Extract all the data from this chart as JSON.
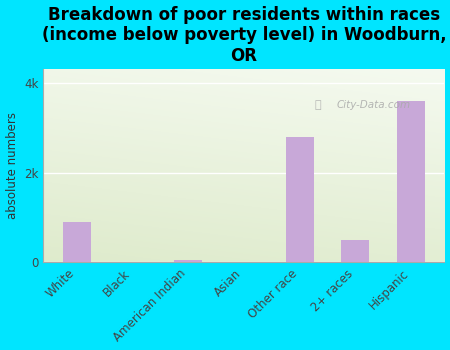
{
  "title": "Breakdown of poor residents within races\n(income below poverty level) in Woodburn,\nOR",
  "categories": [
    "White",
    "Black",
    "American Indian",
    "Asian",
    "Other race",
    "2+ races",
    "Hispanic"
  ],
  "values": [
    900,
    5,
    50,
    0,
    2800,
    500,
    3600
  ],
  "bar_color": "#c8a8d8",
  "ylabel": "absolute numbers",
  "yticks": [
    0,
    2000,
    4000
  ],
  "ytick_labels": [
    "0",
    "2k",
    "4k"
  ],
  "ylim": [
    0,
    4300
  ],
  "xlim_min": -0.6,
  "background_color": "#00e5ff",
  "plot_bg_topleft": "#c8dca8",
  "plot_bg_bottomright": "#f5faf0",
  "watermark": "City-Data.com",
  "title_fontsize": 12,
  "label_fontsize": 8.5,
  "bar_width": 0.5
}
